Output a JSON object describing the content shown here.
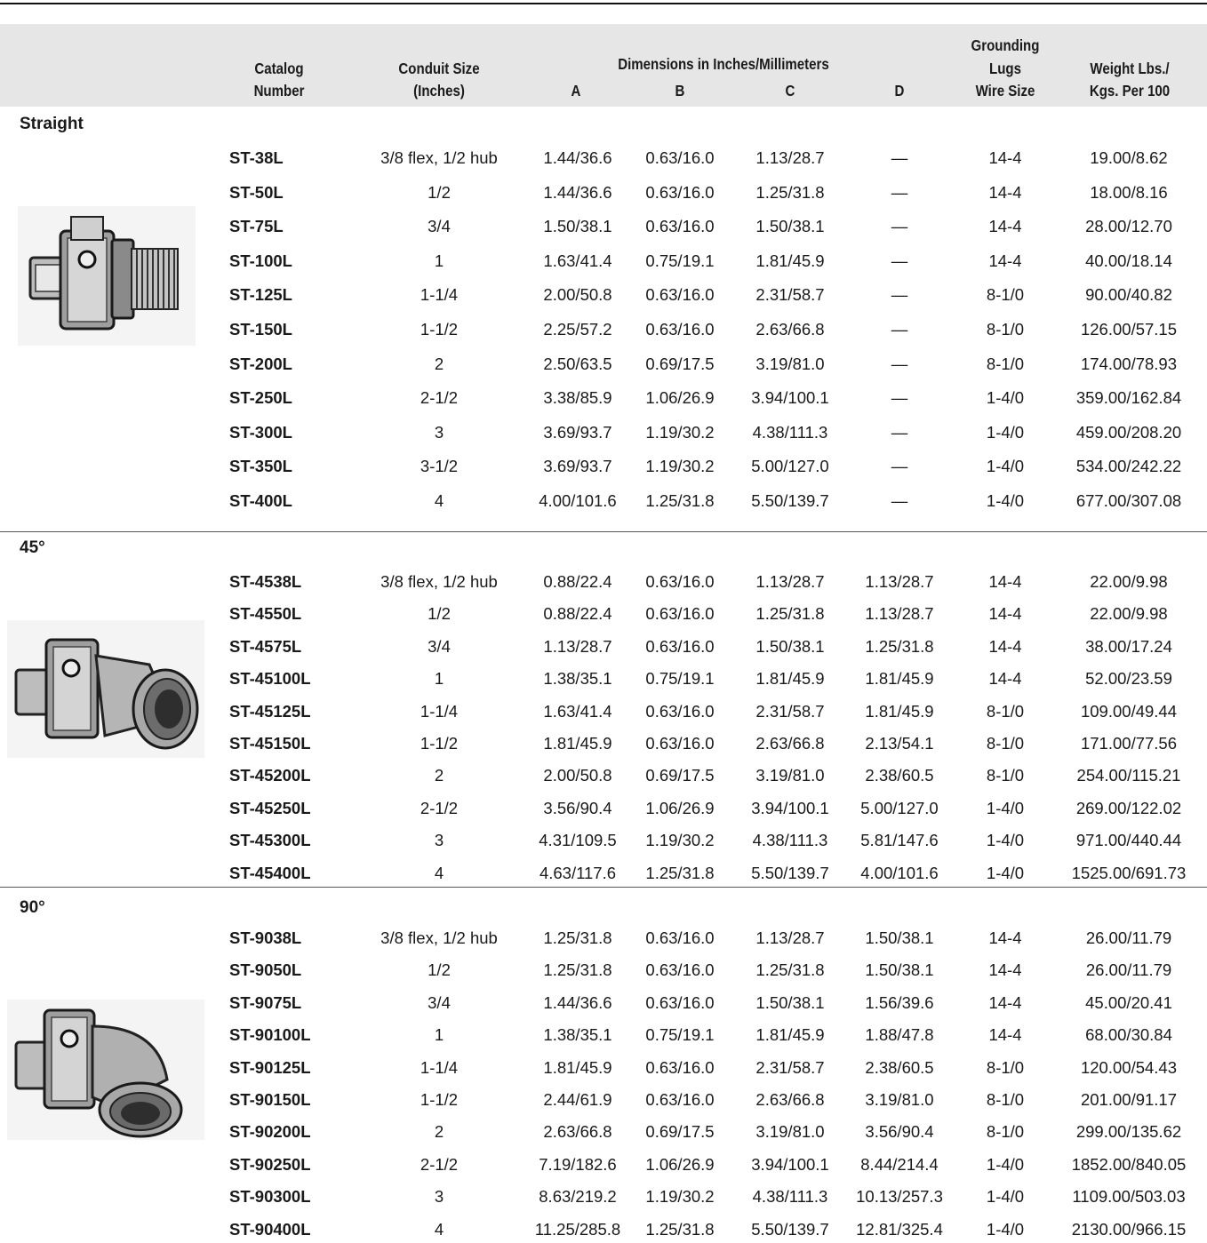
{
  "header": {
    "catalog_line1": "Catalog",
    "catalog_line2": "Number",
    "conduit_line1": "Conduit Size",
    "conduit_line2": "(Inches)",
    "dimensions": "Dimensions in Inches/Millimeters",
    "col_a": "A",
    "col_b": "B",
    "col_c": "C",
    "col_d": "D",
    "lugs_line1": "Grounding",
    "lugs_line2": "Lugs",
    "lugs_line3": "Wire Size",
    "weight_line1": "Weight Lbs./",
    "weight_line2": "Kgs. Per 100"
  },
  "sections": [
    {
      "label": "Straight",
      "rows": [
        [
          "ST-38L",
          "3/8 flex, 1/2 hub",
          "1.44/36.6",
          "0.63/16.0",
          "1.13/28.7",
          "—",
          "14-4",
          "19.00/8.62"
        ],
        [
          "ST-50L",
          "1/2",
          "1.44/36.6",
          "0.63/16.0",
          "1.25/31.8",
          "—",
          "14-4",
          "18.00/8.16"
        ],
        [
          "ST-75L",
          "3/4",
          "1.50/38.1",
          "0.63/16.0",
          "1.50/38.1",
          "—",
          "14-4",
          "28.00/12.70"
        ],
        [
          "ST-100L",
          "1",
          "1.63/41.4",
          "0.75/19.1",
          "1.81/45.9",
          "—",
          "14-4",
          "40.00/18.14"
        ],
        [
          "ST-125L",
          "1-1/4",
          "2.00/50.8",
          "0.63/16.0",
          "2.31/58.7",
          "—",
          "8-1/0",
          "90.00/40.82"
        ],
        [
          "ST-150L",
          "1-1/2",
          "2.25/57.2",
          "0.63/16.0",
          "2.63/66.8",
          "—",
          "8-1/0",
          "126.00/57.15"
        ],
        [
          "ST-200L",
          "2",
          "2.50/63.5",
          "0.69/17.5",
          "3.19/81.0",
          "—",
          "8-1/0",
          "174.00/78.93"
        ],
        [
          "ST-250L",
          "2-1/2",
          "3.38/85.9",
          "1.06/26.9",
          "3.94/100.1",
          "—",
          "1-4/0",
          "359.00/162.84"
        ],
        [
          "ST-300L",
          "3",
          "3.69/93.7",
          "1.19/30.2",
          "4.38/111.3",
          "—",
          "1-4/0",
          "459.00/208.20"
        ],
        [
          "ST-350L",
          "3-1/2",
          "3.69/93.7",
          "1.19/30.2",
          "5.00/127.0",
          "—",
          "1-4/0",
          "534.00/242.22"
        ],
        [
          "ST-400L",
          "4",
          "4.00/101.6",
          "1.25/31.8",
          "5.50/139.7",
          "—",
          "1-4/0",
          "677.00/307.08"
        ]
      ]
    },
    {
      "label": "45°",
      "rows": [
        [
          "ST-4538L",
          "3/8 flex, 1/2  hub",
          "0.88/22.4",
          "0.63/16.0",
          "1.13/28.7",
          "1.13/28.7",
          "14-4",
          "22.00/9.98"
        ],
        [
          "ST-4550L",
          "1/2",
          "0.88/22.4",
          "0.63/16.0",
          "1.25/31.8",
          "1.13/28.7",
          "14-4",
          "22.00/9.98"
        ],
        [
          "ST-4575L",
          "3/4",
          "1.13/28.7",
          "0.63/16.0",
          "1.50/38.1",
          "1.25/31.8",
          "14-4",
          "38.00/17.24"
        ],
        [
          "ST-45100L",
          "1",
          "1.38/35.1",
          "0.75/19.1",
          "1.81/45.9",
          "1.81/45.9",
          "14-4",
          "52.00/23.59"
        ],
        [
          "ST-45125L",
          "1-1/4",
          "1.63/41.4",
          "0.63/16.0",
          "2.31/58.7",
          "1.81/45.9",
          "8-1/0",
          "109.00/49.44"
        ],
        [
          "ST-45150L",
          "1-1/2",
          "1.81/45.9",
          "0.63/16.0",
          "2.63/66.8",
          "2.13/54.1",
          "8-1/0",
          "171.00/77.56"
        ],
        [
          "ST-45200L",
          "2",
          "2.00/50.8",
          "0.69/17.5",
          "3.19/81.0",
          "2.38/60.5",
          "8-1/0",
          "254.00/115.21"
        ],
        [
          "ST-45250L",
          "2-1/2",
          "3.56/90.4",
          "1.06/26.9",
          "3.94/100.1",
          "5.00/127.0",
          "1-4/0",
          "269.00/122.02"
        ],
        [
          "ST-45300L",
          "3",
          "4.31/109.5",
          "1.19/30.2",
          "4.38/111.3",
          "5.81/147.6",
          "1-4/0",
          "971.00/440.44"
        ],
        [
          "ST-45400L",
          "4",
          "4.63/117.6",
          "1.25/31.8",
          "5.50/139.7",
          "4.00/101.6",
          "1-4/0",
          "1525.00/691.73"
        ]
      ]
    },
    {
      "label": "90°",
      "rows": [
        [
          "ST-9038L",
          "3/8 flex, 1/2 hub",
          "1.25/31.8",
          "0.63/16.0",
          "1.13/28.7",
          "1.50/38.1",
          "14-4",
          "26.00/11.79"
        ],
        [
          "ST-9050L",
          "1/2",
          "1.25/31.8",
          "0.63/16.0",
          "1.25/31.8",
          "1.50/38.1",
          "14-4",
          "26.00/11.79"
        ],
        [
          "ST-9075L",
          "3/4",
          "1.44/36.6",
          "0.63/16.0",
          "1.50/38.1",
          "1.56/39.6",
          "14-4",
          "45.00/20.41"
        ],
        [
          "ST-90100L",
          "1",
          "1.38/35.1",
          "0.75/19.1",
          "1.81/45.9",
          "1.88/47.8",
          "14-4",
          "68.00/30.84"
        ],
        [
          "ST-90125L",
          "1-1/4",
          "1.81/45.9",
          "0.63/16.0",
          "2.31/58.7",
          "2.38/60.5",
          "8-1/0",
          "120.00/54.43"
        ],
        [
          "ST-90150L",
          "1-1/2",
          "2.44/61.9",
          "0.63/16.0",
          "2.63/66.8",
          "3.19/81.0",
          "8-1/0",
          "201.00/91.17"
        ],
        [
          "ST-90200L",
          "2",
          "2.63/66.8",
          "0.69/17.5",
          "3.19/81.0",
          "3.56/90.4",
          "8-1/0",
          "299.00/135.62"
        ],
        [
          "ST-90250L",
          "2-1/2",
          "7.19/182.6",
          "1.06/26.9",
          "3.94/100.1",
          "8.44/214.4",
          "1-4/0",
          "1852.00/840.05"
        ],
        [
          "ST-90300L",
          "3",
          "8.63/219.2",
          "1.19/30.2",
          "4.38/111.3",
          "10.13/257.3",
          "1-4/0",
          "1109.00/503.03"
        ],
        [
          "ST-90400L",
          "4",
          "11.25/285.8",
          "1.25/31.8",
          "5.50/139.7",
          "12.81/325.4",
          "1-4/0",
          "2130.00/966.15"
        ]
      ]
    }
  ]
}
